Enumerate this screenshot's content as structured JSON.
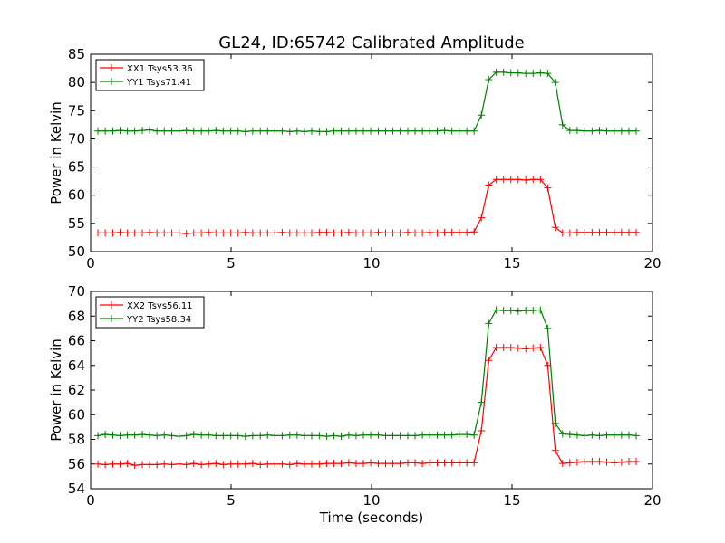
{
  "figure": {
    "title": "GL24, ID:65742 Calibrated Amplitude"
  },
  "chart_data": [
    {
      "type": "line",
      "title": "GL24, ID:65742 Calibrated Amplitude",
      "xlabel": "",
      "ylabel": "Power in Kelvin",
      "xlim": [
        0,
        20
      ],
      "ylim": [
        50,
        85
      ],
      "xticks": [
        0,
        5,
        10,
        15,
        20
      ],
      "yticks": [
        50,
        55,
        60,
        65,
        70,
        75,
        80,
        85
      ],
      "grid": false,
      "legend": "top-left",
      "x": [
        0.26,
        0.52,
        0.79,
        1.05,
        1.31,
        1.57,
        1.84,
        2.1,
        2.36,
        2.62,
        2.89,
        3.15,
        3.41,
        3.67,
        3.94,
        4.2,
        4.46,
        4.72,
        4.99,
        5.25,
        5.51,
        5.77,
        6.04,
        6.3,
        6.56,
        6.82,
        7.09,
        7.35,
        7.61,
        7.87,
        8.14,
        8.4,
        8.66,
        8.92,
        9.19,
        9.45,
        9.71,
        9.97,
        10.24,
        10.5,
        10.76,
        11.02,
        11.29,
        11.55,
        11.81,
        12.07,
        12.34,
        12.6,
        12.86,
        13.12,
        13.39,
        13.65,
        13.91,
        14.17,
        14.44,
        14.7,
        14.96,
        15.22,
        15.49,
        15.75,
        16.01,
        16.27,
        16.54,
        16.8,
        17.06,
        17.32,
        17.59,
        17.85,
        18.11,
        18.37,
        18.64,
        18.9,
        19.16,
        19.42
      ],
      "series": [
        {
          "name": "XX1 Tsys53.36",
          "color": "#ff0000",
          "values": [
            53.3,
            53.3,
            53.3,
            53.4,
            53.3,
            53.3,
            53.3,
            53.4,
            53.3,
            53.3,
            53.3,
            53.3,
            53.2,
            53.3,
            53.3,
            53.4,
            53.3,
            53.3,
            53.3,
            53.3,
            53.4,
            53.3,
            53.3,
            53.3,
            53.3,
            53.4,
            53.3,
            53.3,
            53.3,
            53.3,
            53.4,
            53.4,
            53.3,
            53.3,
            53.4,
            53.3,
            53.3,
            53.3,
            53.4,
            53.3,
            53.3,
            53.3,
            53.4,
            53.3,
            53.3,
            53.4,
            53.3,
            53.4,
            53.4,
            53.4,
            53.4,
            53.5,
            56.0,
            61.8,
            62.8,
            62.8,
            62.8,
            62.8,
            62.7,
            62.8,
            62.8,
            61.3,
            54.3,
            53.3,
            53.3,
            53.4,
            53.4,
            53.4,
            53.4,
            53.4,
            53.4,
            53.4,
            53.4,
            53.4
          ]
        },
        {
          "name": "YY1 Tsys71.41",
          "color": "#008000",
          "values": [
            71.4,
            71.4,
            71.4,
            71.5,
            71.4,
            71.4,
            71.5,
            71.6,
            71.4,
            71.4,
            71.4,
            71.4,
            71.5,
            71.4,
            71.4,
            71.4,
            71.5,
            71.4,
            71.4,
            71.4,
            71.3,
            71.4,
            71.4,
            71.4,
            71.4,
            71.4,
            71.3,
            71.4,
            71.3,
            71.4,
            71.3,
            71.3,
            71.4,
            71.4,
            71.4,
            71.4,
            71.4,
            71.4,
            71.4,
            71.4,
            71.4,
            71.4,
            71.4,
            71.4,
            71.4,
            71.4,
            71.4,
            71.5,
            71.4,
            71.4,
            71.4,
            71.4,
            74.2,
            80.5,
            81.8,
            81.8,
            81.7,
            81.7,
            81.6,
            81.6,
            81.7,
            81.6,
            80.0,
            72.5,
            71.5,
            71.5,
            71.4,
            71.4,
            71.5,
            71.4,
            71.4,
            71.4,
            71.4,
            71.4
          ]
        }
      ]
    },
    {
      "type": "line",
      "title": "",
      "xlabel": "Time (seconds)",
      "ylabel": "Power in Kelvin",
      "xlim": [
        0,
        20
      ],
      "ylim": [
        54,
        70
      ],
      "xticks": [
        0,
        5,
        10,
        15,
        20
      ],
      "yticks": [
        54,
        56,
        58,
        60,
        62,
        64,
        66,
        68,
        70
      ],
      "grid": false,
      "legend": "top-left",
      "x": [
        0.26,
        0.52,
        0.79,
        1.05,
        1.31,
        1.57,
        1.84,
        2.1,
        2.36,
        2.62,
        2.89,
        3.15,
        3.41,
        3.67,
        3.94,
        4.2,
        4.46,
        4.72,
        4.99,
        5.25,
        5.51,
        5.77,
        6.04,
        6.3,
        6.56,
        6.82,
        7.09,
        7.35,
        7.61,
        7.87,
        8.14,
        8.4,
        8.66,
        8.92,
        9.19,
        9.45,
        9.71,
        9.97,
        10.24,
        10.5,
        10.76,
        11.02,
        11.29,
        11.55,
        11.81,
        12.07,
        12.34,
        12.6,
        12.86,
        13.12,
        13.39,
        13.65,
        13.91,
        14.17,
        14.44,
        14.7,
        14.96,
        15.22,
        15.49,
        15.75,
        16.01,
        16.27,
        16.54,
        16.8,
        17.06,
        17.32,
        17.59,
        17.85,
        18.11,
        18.37,
        18.64,
        18.9,
        19.16,
        19.42
      ],
      "series": [
        {
          "name": "XX2 Tsys56.11",
          "color": "#ff0000",
          "values": [
            56.0,
            55.95,
            56.0,
            56.0,
            56.05,
            55.9,
            55.95,
            55.95,
            55.95,
            56.0,
            55.95,
            56.0,
            55.95,
            56.05,
            55.95,
            56.0,
            56.05,
            55.95,
            56.0,
            56.0,
            56.0,
            56.05,
            55.95,
            56.0,
            56.0,
            56.0,
            55.95,
            56.05,
            56.0,
            56.0,
            56.0,
            56.05,
            56.05,
            56.05,
            56.1,
            56.05,
            56.05,
            56.1,
            56.05,
            56.05,
            56.05,
            56.05,
            56.1,
            56.1,
            56.05,
            56.1,
            56.1,
            56.1,
            56.1,
            56.1,
            56.1,
            56.1,
            58.7,
            64.4,
            65.45,
            65.45,
            65.45,
            65.4,
            65.35,
            65.4,
            65.45,
            64.0,
            57.1,
            56.05,
            56.1,
            56.15,
            56.2,
            56.2,
            56.2,
            56.15,
            56.1,
            56.15,
            56.2,
            56.2
          ]
        },
        {
          "name": "YY2 Tsys58.34",
          "color": "#008000",
          "values": [
            58.3,
            58.4,
            58.35,
            58.3,
            58.35,
            58.35,
            58.4,
            58.35,
            58.3,
            58.35,
            58.3,
            58.25,
            58.3,
            58.4,
            58.35,
            58.35,
            58.3,
            58.3,
            58.3,
            58.3,
            58.25,
            58.3,
            58.3,
            58.35,
            58.3,
            58.3,
            58.35,
            58.35,
            58.3,
            58.3,
            58.3,
            58.25,
            58.3,
            58.25,
            58.35,
            58.3,
            58.35,
            58.35,
            58.35,
            58.3,
            58.3,
            58.3,
            58.3,
            58.3,
            58.35,
            58.35,
            58.35,
            58.35,
            58.35,
            58.4,
            58.4,
            58.35,
            61.0,
            67.4,
            68.5,
            68.45,
            68.45,
            68.4,
            68.45,
            68.45,
            68.5,
            67.0,
            59.3,
            58.45,
            58.4,
            58.35,
            58.3,
            58.35,
            58.3,
            58.35,
            58.35,
            58.35,
            58.35,
            58.3
          ]
        }
      ]
    }
  ]
}
